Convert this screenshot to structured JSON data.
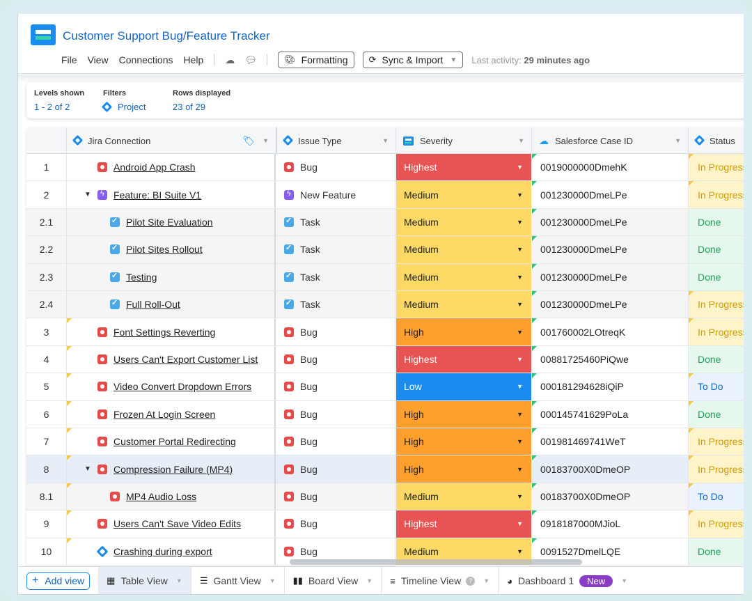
{
  "app": {
    "title": "Customer Support Bug/Feature Tracker"
  },
  "menu": {
    "file": "File",
    "view": "View",
    "connections": "Connections",
    "help": "Help"
  },
  "toolbar": {
    "formatting": "Formatting",
    "sync": "Sync & Import",
    "last_activity_label": "Last activity:",
    "last_activity_value": "29 minutes ago"
  },
  "filters": {
    "levels_label": "Levels shown",
    "levels_value": "1 - 2 of 2",
    "filters_label": "Filters",
    "filters_value": "Project",
    "rows_label": "Rows displayed",
    "rows_value": "23 of 29"
  },
  "columns": {
    "jira": "Jira Connection",
    "type": "Issue Type",
    "severity": "Severity",
    "salesforce": "Salesforce Case ID",
    "status": "Status"
  },
  "rows": [
    {
      "num": "1",
      "indent": 0,
      "toggle": "",
      "icon": "bug",
      "name": "Android App Crash",
      "type_icon": "bug",
      "type": "Bug",
      "severity": "Highest",
      "sf": "0019000000DmehK",
      "status": "In Progress",
      "kind": "parent"
    },
    {
      "num": "2",
      "indent": 0,
      "toggle": "▼",
      "icon": "feat",
      "name": "Feature: BI Suite V1",
      "type_icon": "feat",
      "type": "New Feature",
      "severity": "Medium",
      "sf": "001230000DmeLPe",
      "status": "In Progress",
      "kind": "parent"
    },
    {
      "num": "2.1",
      "indent": 1,
      "toggle": "",
      "icon": "task",
      "name": "Pilot Site Evaluation",
      "type_icon": "task",
      "type": "Task",
      "severity": "Medium",
      "sf": "001230000DmeLPe",
      "status": "Done",
      "kind": "child"
    },
    {
      "num": "2.2",
      "indent": 1,
      "toggle": "",
      "icon": "task",
      "name": "Pilot Sites Rollout",
      "type_icon": "task",
      "type": "Task",
      "severity": "Medium",
      "sf": "001230000DmeLPe",
      "status": "Done",
      "kind": "child"
    },
    {
      "num": "2.3",
      "indent": 1,
      "toggle": "",
      "icon": "task",
      "name": "Testing",
      "type_icon": "task",
      "type": "Task",
      "severity": "Medium",
      "sf": "001230000DmeLPe",
      "status": "Done",
      "kind": "child"
    },
    {
      "num": "2.4",
      "indent": 1,
      "toggle": "",
      "icon": "task",
      "name": "Full Roll-Out",
      "type_icon": "task",
      "type": "Task",
      "severity": "Medium",
      "sf": "001230000DmeLPe",
      "status": "In Progress",
      "kind": "child"
    },
    {
      "num": "3",
      "indent": 0,
      "toggle": "",
      "icon": "bug",
      "name": "Font Settings Reverting",
      "type_icon": "bug",
      "type": "Bug",
      "severity": "High",
      "sf": "001760002LOtreqK",
      "status": "In Progress",
      "kind": "parent"
    },
    {
      "num": "4",
      "indent": 0,
      "toggle": "",
      "icon": "bug",
      "name": "Users Can't Export Customer List",
      "type_icon": "bug",
      "type": "Bug",
      "severity": "Highest",
      "sf": "00881725460PiQwe",
      "status": "Done",
      "kind": "parent"
    },
    {
      "num": "5",
      "indent": 0,
      "toggle": "",
      "icon": "bug",
      "name": "Video Convert Dropdown Errors",
      "type_icon": "bug",
      "type": "Bug",
      "severity": "Low",
      "sf": "000181294628iQiP",
      "status": "To Do",
      "kind": "parent"
    },
    {
      "num": "6",
      "indent": 0,
      "toggle": "",
      "icon": "bug",
      "name": "Frozen At Login Screen",
      "type_icon": "bug",
      "type": "Bug",
      "severity": "High",
      "sf": "000145741629PoLa",
      "status": "Done",
      "kind": "parent"
    },
    {
      "num": "7",
      "indent": 0,
      "toggle": "",
      "icon": "bug",
      "name": "Customer Portal Redirecting",
      "type_icon": "bug",
      "type": "Bug",
      "severity": "High",
      "sf": "001981469741WeT",
      "status": "In Progress",
      "kind": "parent"
    },
    {
      "num": "8",
      "indent": 0,
      "toggle": "▼",
      "icon": "bug",
      "name": "Compression Failure (MP4)",
      "type_icon": "bug",
      "type": "Bug",
      "severity": "High",
      "sf": "00183700X0DmeOP",
      "status": "In Progress",
      "kind": "sel"
    },
    {
      "num": "8.1",
      "indent": 1,
      "toggle": "",
      "icon": "bug",
      "name": "MP4 Audio Loss",
      "type_icon": "bug",
      "type": "Bug",
      "severity": "Medium",
      "sf": "00183700X0DmeOP",
      "status": "To Do",
      "kind": "child"
    },
    {
      "num": "9",
      "indent": 0,
      "toggle": "",
      "icon": "bug",
      "name": "Users Can't Save Video Edits",
      "type_icon": "bug",
      "type": "Bug",
      "severity": "Highest",
      "sf": "0918187000MJioL",
      "status": "In Progress",
      "kind": "parent"
    },
    {
      "num": "10",
      "indent": 0,
      "toggle": "",
      "icon": "story",
      "name": "Crashing during export",
      "type_icon": "bug",
      "type": "Bug",
      "severity": "Medium",
      "sf": "0091527DmelLQE",
      "status": "Done",
      "kind": "parent"
    }
  ],
  "views": {
    "add": "Add view",
    "table": "Table View",
    "gantt": "Gantt View",
    "board": "Board View",
    "timeline": "Timeline View",
    "dashboard": "Dashboard 1",
    "new_badge": "New"
  },
  "colors": {
    "accent": "#1a8cf0",
    "highest": "#e85454",
    "high": "#ffa02e",
    "medium": "#ffd966",
    "low": "#1a8cf0"
  }
}
